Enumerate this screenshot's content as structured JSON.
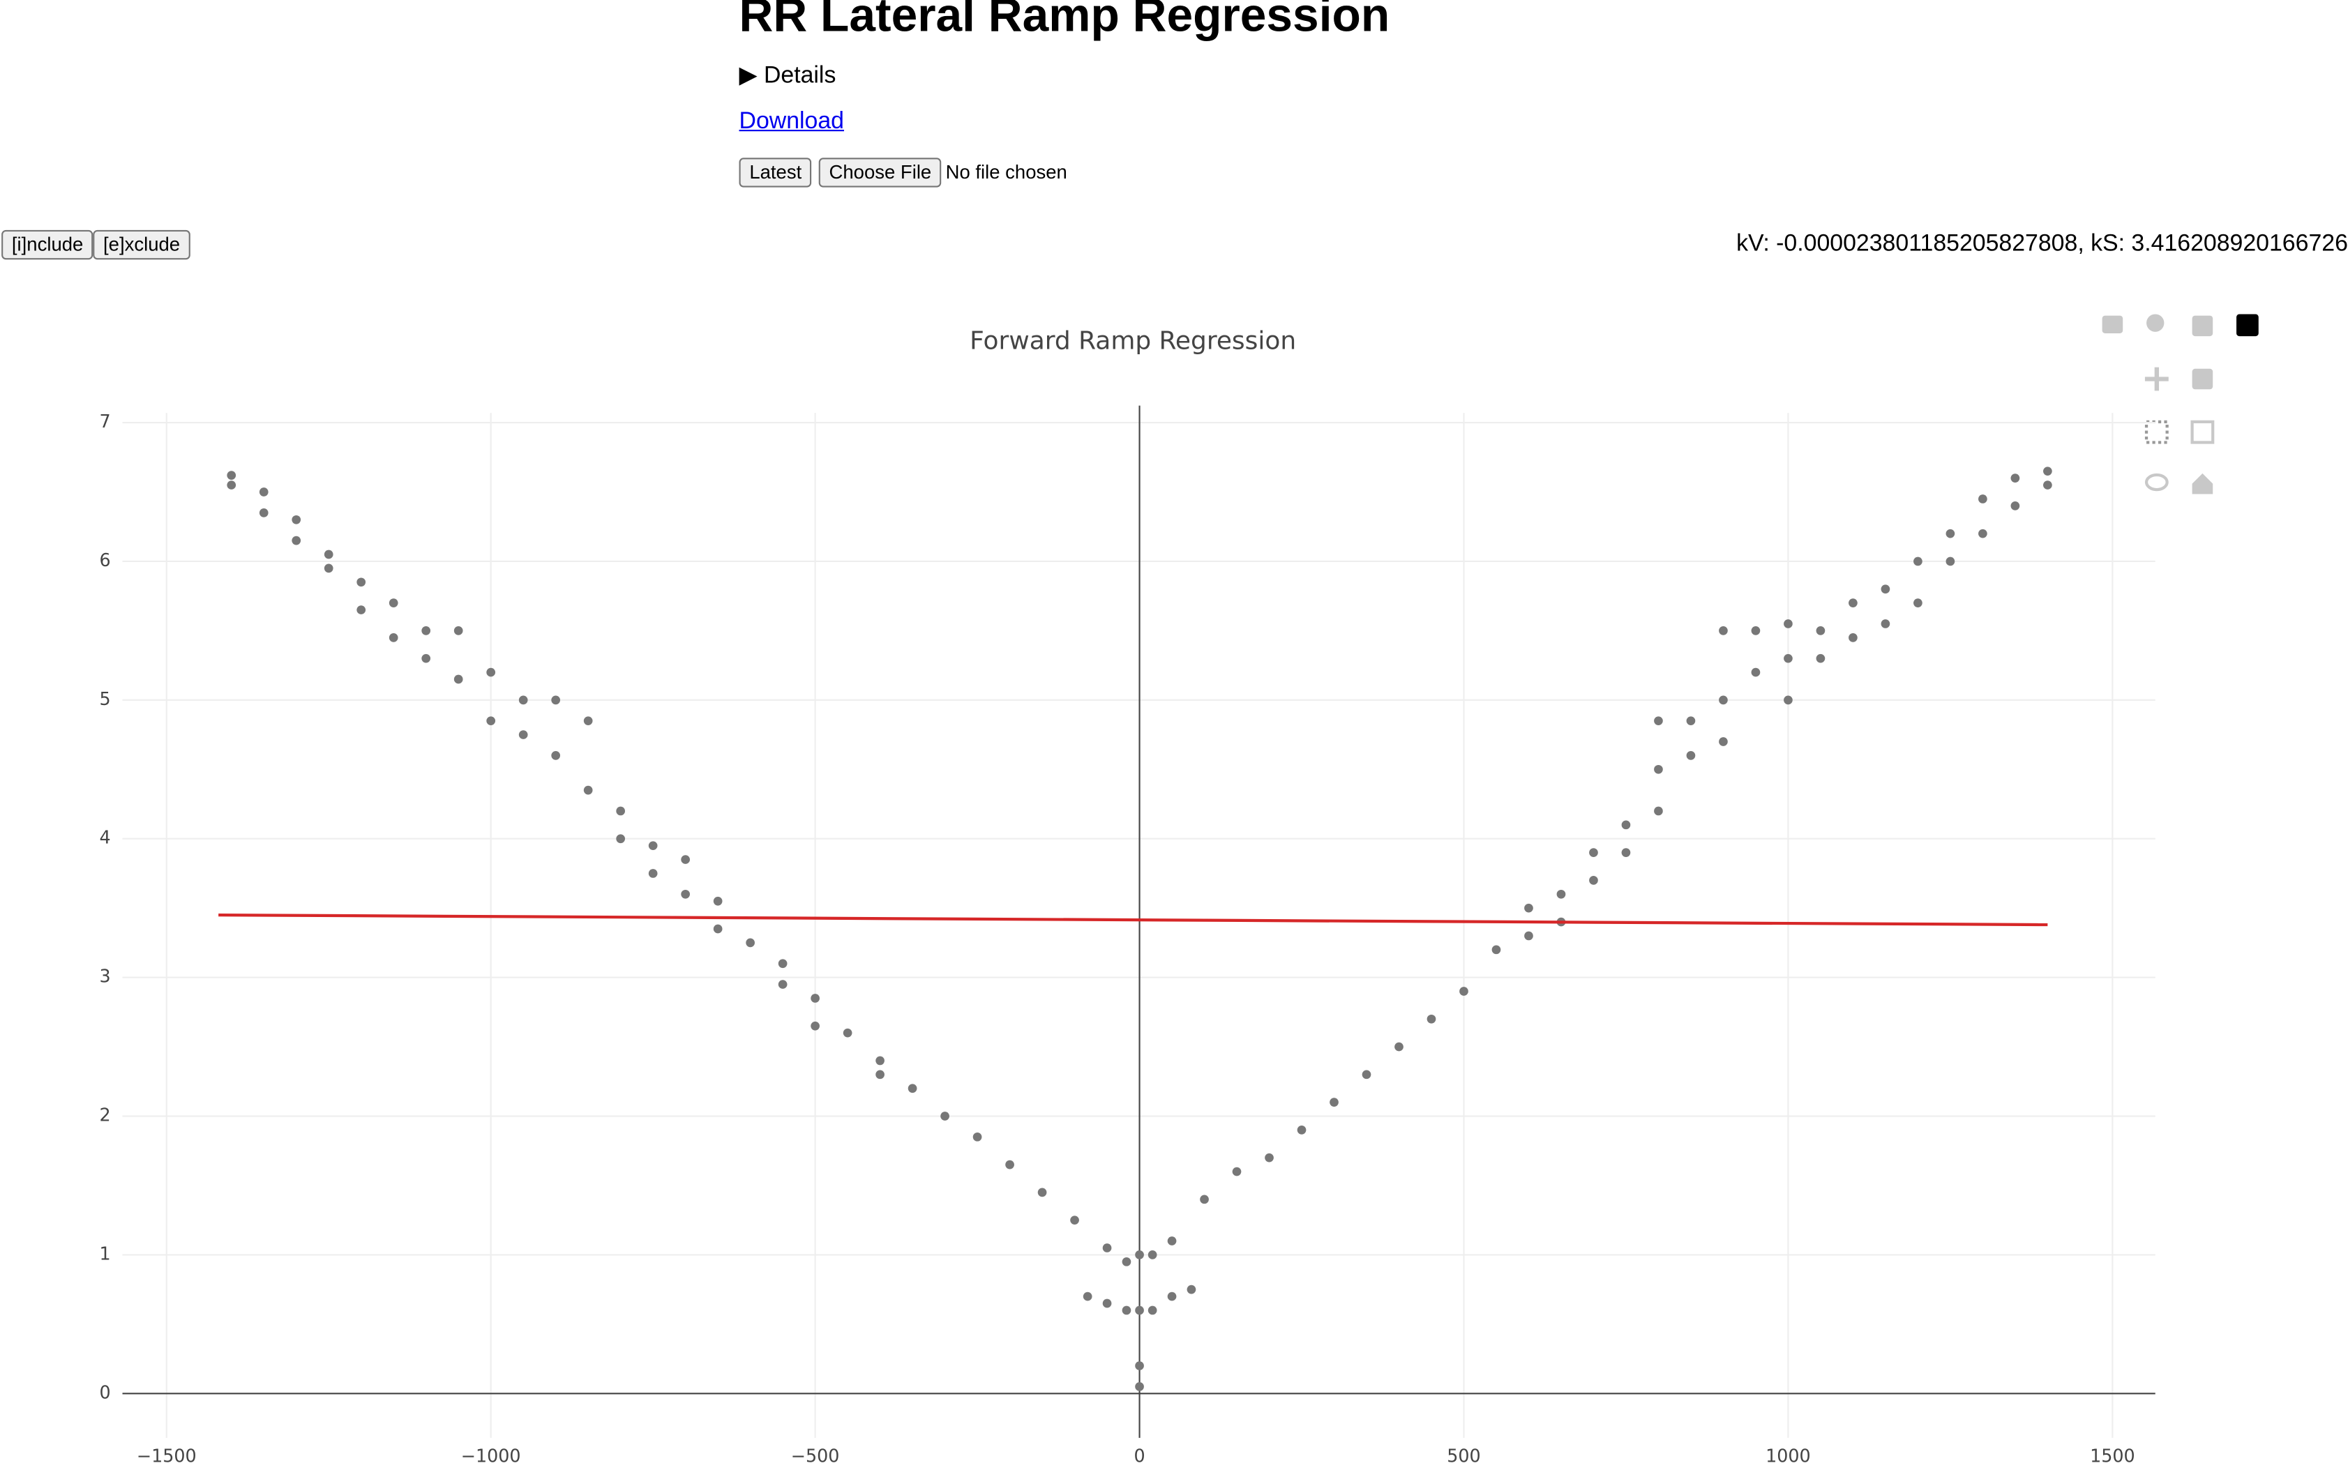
{
  "header": {
    "title": "RR Lateral Ramp Regression",
    "details": "Details",
    "download": "Download",
    "latest": "Latest",
    "choose_file": "Choose File",
    "no_file": "No file chosen",
    "include": "[i]nclude",
    "exclude": "[e]xclude",
    "coefficients": "kV: -0.000023801185205827808, kS: 3.416208920166726"
  },
  "chart_data": {
    "type": "scatter",
    "title": "Forward Ramp Regression",
    "xlim": [
      -1568,
      1566
    ],
    "ylim": [
      -0.32,
      7.07
    ],
    "xticks": [
      {
        "value": -1500,
        "label": "−1500"
      },
      {
        "value": -1000,
        "label": "−1000"
      },
      {
        "value": -500,
        "label": "−500"
      },
      0,
      500,
      1000,
      1500
    ],
    "yticks": [
      0,
      1,
      2,
      3,
      4,
      5,
      6,
      7
    ],
    "grid": true,
    "series": [
      {
        "type": "scatter",
        "color": "#777777",
        "x": [
          -1400,
          -1400,
          -1350,
          -1350,
          -1300,
          -1300,
          -1250,
          -1250,
          -1200,
          -1200,
          -1150,
          -1150,
          -1100,
          -1100,
          -1050,
          -1050,
          -1000,
          -1000,
          -950,
          -950,
          -900,
          -900,
          -850,
          -850,
          -800,
          -800,
          -750,
          -750,
          -700,
          -700,
          -650,
          -650,
          -600,
          -550,
          -550,
          -500,
          -500,
          -450,
          -400,
          -400,
          -350,
          -300,
          -250,
          -200,
          -150,
          -100,
          -80,
          -50,
          -50,
          -20,
          -20,
          0,
          0,
          0,
          0,
          20,
          20,
          50,
          50,
          80,
          100,
          150,
          200,
          250,
          300,
          350,
          400,
          450,
          500,
          550,
          600,
          600,
          650,
          650,
          700,
          700,
          750,
          750,
          800,
          800,
          800,
          850,
          850,
          900,
          900,
          900,
          950,
          950,
          1000,
          1000,
          1000,
          1050,
          1050,
          1100,
          1100,
          1150,
          1150,
          1200,
          1200,
          1250,
          1250,
          1300,
          1300,
          1350,
          1350,
          1400,
          1400
        ],
        "values": [
          6.62,
          6.55,
          6.5,
          6.35,
          6.3,
          6.15,
          6.05,
          5.95,
          5.85,
          5.65,
          5.7,
          5.45,
          5.5,
          5.3,
          5.5,
          5.15,
          5.2,
          4.85,
          5.0,
          4.75,
          5.0,
          4.6,
          4.85,
          4.35,
          4.2,
          4.0,
          3.95,
          3.75,
          3.85,
          3.6,
          3.55,
          3.35,
          3.25,
          3.1,
          2.95,
          2.85,
          2.65,
          2.6,
          2.4,
          2.3,
          2.2,
          2.0,
          1.85,
          1.65,
          1.45,
          1.25,
          0.7,
          1.05,
          0.65,
          0.95,
          0.6,
          1.0,
          0.6,
          0.2,
          0.05,
          1.0,
          0.6,
          1.1,
          0.7,
          0.75,
          1.4,
          1.6,
          1.7,
          1.9,
          2.1,
          2.3,
          2.5,
          2.7,
          2.9,
          3.2,
          3.5,
          3.3,
          3.6,
          3.4,
          3.9,
          3.7,
          4.1,
          3.9,
          4.5,
          4.85,
          4.2,
          4.85,
          4.6,
          5.0,
          4.7,
          5.5,
          5.2,
          5.5,
          5.3,
          5.0,
          5.55,
          5.5,
          5.3,
          5.7,
          5.45,
          5.8,
          5.55,
          6.0,
          5.7,
          6.2,
          6.0,
          6.45,
          6.2,
          6.6,
          6.4,
          6.65,
          6.55
        ]
      },
      {
        "type": "line",
        "color": "#d62728",
        "x": [
          -1420,
          1400
        ],
        "values": [
          3.45,
          3.38
        ]
      }
    ]
  }
}
